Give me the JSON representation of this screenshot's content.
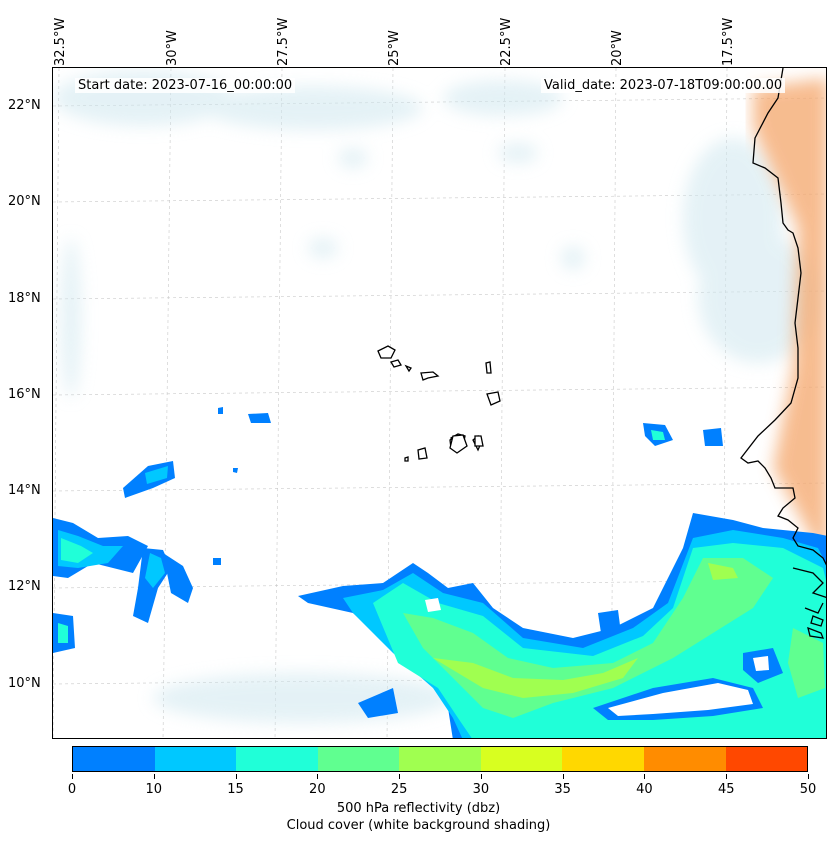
{
  "header": {
    "start_date": "Start date: 2023-07-16_00:00:00",
    "valid_date": "Valid_date: 2023-07-18T09:00:00.00"
  },
  "map": {
    "lon_labels": [
      "32.5°W",
      "30°W",
      "27.5°W",
      "25°W",
      "22.5°W",
      "20°W",
      "17.5°W"
    ],
    "lat_labels": [
      "22°N",
      "20°N",
      "18°N",
      "16°N",
      "14°N",
      "12°N",
      "10°N"
    ]
  },
  "colorbar": {
    "ticks": [
      "0",
      "10",
      "15",
      "20",
      "25",
      "30",
      "35",
      "40",
      "45",
      "50"
    ],
    "colors": [
      "#0080ff",
      "#00c8ff",
      "#20ffd8",
      "#60ff90",
      "#a0ff50",
      "#d8ff20",
      "#ffd800",
      "#ff8c00",
      "#ff4800"
    ],
    "label1": "500 hPa reflectivity (dbz)",
    "label2": "Cloud cover (white background shading)"
  }
}
